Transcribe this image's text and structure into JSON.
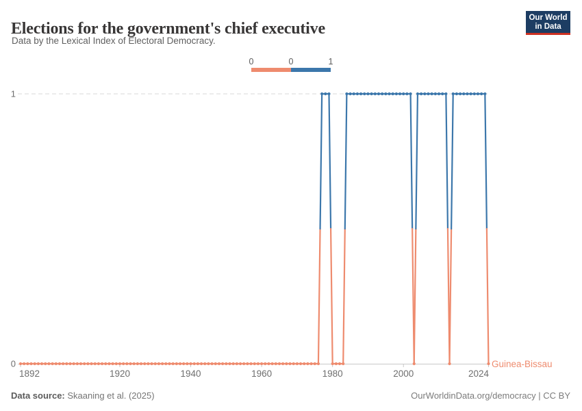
{
  "header": {
    "title": "Elections for the government's chief executive",
    "subtitle": "Data by the Lexical Index of Electoral Democracy.",
    "logo": {
      "line1": "Our World",
      "line2": "in Data",
      "bg_color": "#1d3d63",
      "bar_color": "#cd3122"
    }
  },
  "legend": {
    "tick_labels": [
      "0",
      "0",
      "1"
    ],
    "bins": [
      {
        "value": "0",
        "color": "#EE8B6E"
      },
      {
        "value": "1",
        "color": "#3C77AB"
      }
    ]
  },
  "chart_data": {
    "type": "line",
    "title": "Elections for the government's chief executive",
    "entity": "Guinea-Bissau",
    "end_label": "Guinea-Bissau",
    "x_domain": [
      1892,
      2024
    ],
    "y_domain": [
      0,
      1
    ],
    "x_ticks": [
      1892,
      1920,
      1940,
      1960,
      1980,
      2000,
      2024
    ],
    "y_ticks": [
      0,
      1
    ],
    "grid": "dashed horizontal gridline at y=1, solid axis at y=0",
    "legend_position": "top-center",
    "series": [
      {
        "name": "Guinea-Bissau",
        "value_colors": {
          "0": "#EE8B6E",
          "1": "#3C77AB"
        },
        "segments": [
          {
            "from": 1892,
            "to": 1976,
            "value": 0
          },
          {
            "from": 1977,
            "to": 1979,
            "value": 1
          },
          {
            "from": 1980,
            "to": 1983,
            "value": 0
          },
          {
            "from": 1984,
            "to": 2002,
            "value": 1
          },
          {
            "from": 2003,
            "to": 2003,
            "value": 0
          },
          {
            "from": 2004,
            "to": 2012,
            "value": 1
          },
          {
            "from": 2013,
            "to": 2013,
            "value": 0
          },
          {
            "from": 2014,
            "to": 2023,
            "value": 1
          },
          {
            "from": 2024,
            "to": 2024,
            "value": 0
          }
        ]
      }
    ]
  },
  "footer": {
    "source_label": "Data source:",
    "source_value": " Skaaning et al. (2025)",
    "credit": "OurWorldinData.org/democracy | CC BY"
  }
}
